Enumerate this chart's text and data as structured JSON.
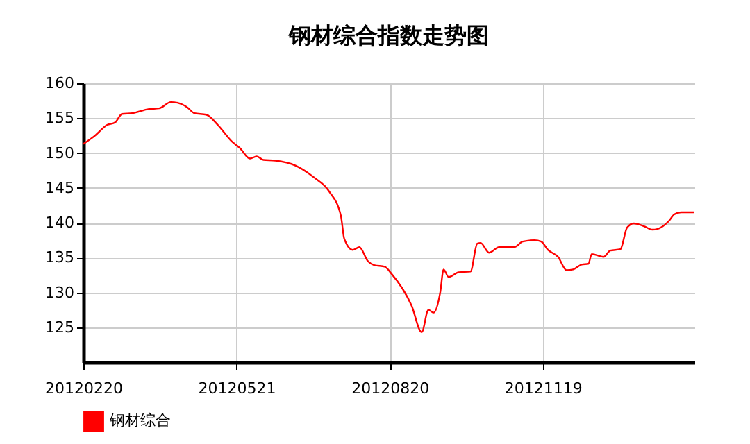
{
  "chart_data": {
    "type": "line",
    "title": "钢材综合指数走势图",
    "x": [
      "2012-02-20",
      "2012-02-27",
      "2012-03-05",
      "2012-03-10",
      "2012-03-14",
      "2012-03-20",
      "2012-03-30",
      "2012-04-05",
      "2012-04-12",
      "2012-04-16",
      "2012-04-22",
      "2012-04-26",
      "2012-05-03",
      "2012-05-10",
      "2012-05-18",
      "2012-05-23",
      "2012-05-29",
      "2012-06-02",
      "2012-06-06",
      "2012-06-13",
      "2012-06-25",
      "2012-07-06",
      "2012-07-15",
      "2012-07-22",
      "2012-07-24",
      "2012-07-29",
      "2012-08-02",
      "2012-08-07",
      "2012-08-11",
      "2012-08-17",
      "2012-08-21",
      "2012-09-02",
      "2012-09-08",
      "2012-09-12",
      "2012-09-15",
      "2012-09-19",
      "2012-09-21",
      "2012-09-24",
      "2012-09-30",
      "2012-10-07",
      "2012-10-11",
      "2012-10-13",
      "2012-10-18",
      "2012-10-24",
      "2012-11-02",
      "2012-11-07",
      "2012-11-14",
      "2012-11-18",
      "2012-11-22",
      "2012-11-28",
      "2012-12-03",
      "2012-12-07",
      "2012-12-12",
      "2012-12-16",
      "2012-12-18",
      "2012-12-25",
      "2012-12-29",
      "2013-01-04",
      "2013-01-08",
      "2013-01-12",
      "2013-01-18",
      "2013-01-23",
      "2013-01-26",
      "2013-02-02",
      "2013-02-05",
      "2013-02-09",
      "2013-02-17"
    ],
    "series": [
      {
        "name": "钢材综合",
        "color": "#ff0000",
        "values": [
          151.3,
          152.5,
          154,
          154.4,
          155.6,
          155.7,
          156.3,
          156.4,
          157.3,
          157.2,
          156.5,
          155.7,
          155.5,
          154,
          151.7,
          150.7,
          149.2,
          149.5,
          149,
          148.9,
          148.2,
          146.5,
          144.5,
          141,
          137.7,
          136.1,
          136.5,
          134.5,
          133.9,
          133.7,
          132.7,
          128.1,
          124.3,
          127.5,
          127.1,
          130,
          133.3,
          132.2,
          132.9,
          133,
          137,
          137.1,
          135.7,
          136.5,
          136.5,
          137.3,
          137.5,
          137.3,
          136.1,
          135.1,
          133.2,
          133.3,
          134,
          134.1,
          135.5,
          135.1,
          136,
          136.2,
          139.3,
          139.9,
          139.5,
          139,
          139.1,
          140.3,
          141.2,
          141.5,
          141.5
        ]
      }
    ],
    "xlim": [
      "2012-02-20",
      "2013-02-17"
    ],
    "xticks": [
      {
        "value": "2012-02-20",
        "label": "20120220"
      },
      {
        "value": "2012-05-21",
        "label": "20120521"
      },
      {
        "value": "2012-08-20",
        "label": "20120820"
      },
      {
        "value": "2012-11-19",
        "label": "20121119"
      }
    ],
    "ylim": [
      120,
      160
    ],
    "yticks": [
      125,
      130,
      135,
      140,
      145,
      150,
      155,
      160
    ],
    "grid": true,
    "legend": "bottom left",
    "marker": "none",
    "line_style": "solid"
  }
}
